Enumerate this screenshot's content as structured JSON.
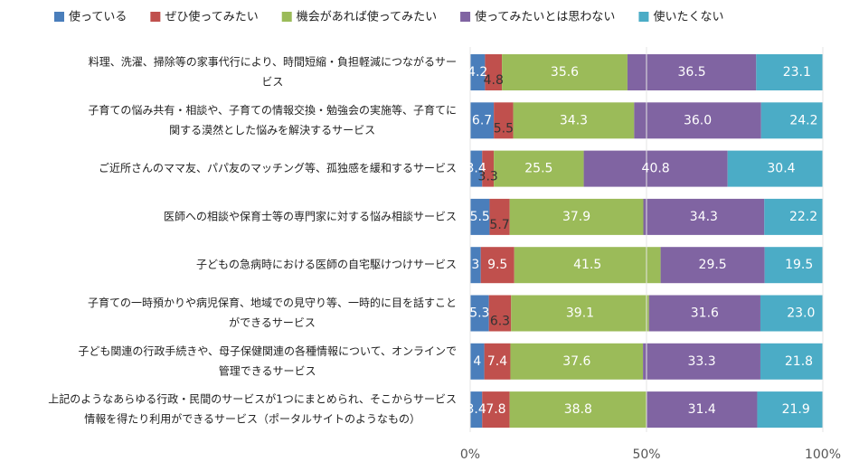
{
  "chart_data": {
    "type": "stacked_barh",
    "categories": [
      [
        "料理、洗濯、掃除等の家事代行により、時間短縮・負担軽減につながるサー",
        "ビス"
      ],
      [
        "子育ての悩み共有・相談や、子育ての情報交換・勉強会の実施等、子育てに",
        "関する漠然とした悩みを解決するサービス"
      ],
      [
        "ご近所さんのママ友、パパ友のマッチング等、孤独感を緩和するサービス"
      ],
      [
        "医師への相談や保育士等の専門家に対する悩み相談サービス"
      ],
      [
        "子どもの急病時における医師の自宅駆けつけサービス"
      ],
      [
        "子育ての一時預かりや病児保育、地域での見守り等、一時的に目を話すこと",
        "ができるサービス"
      ],
      [
        "子ども関連の行政手続きや、母子保健関連の各種情報について、オンラインで",
        "管理できるサービス"
      ],
      [
        "上記のようなあらゆる行政・民間のサービスが1つにまとめられ、そこからサービス",
        "情報を得たり利用ができるサービス（ポータルサイトのようなもの）"
      ]
    ],
    "series": [
      {
        "name": "使っている",
        "color": "#4a7ebb",
        "values": [
          4.2,
          6.7,
          3.4,
          5.5,
          3.0,
          5.3,
          4.0,
          3.4
        ]
      },
      {
        "name": "ぜひ使ってみたい",
        "color": "#c0504d",
        "values": [
          4.8,
          5.5,
          3.3,
          5.7,
          9.5,
          6.3,
          7.4,
          7.8
        ]
      },
      {
        "name": "機会があれば使ってみたい",
        "color": "#9bbb59",
        "values": [
          35.6,
          34.3,
          25.5,
          37.9,
          41.5,
          39.1,
          37.6,
          38.8
        ]
      },
      {
        "name": "使ってみたいとは思わない",
        "color": "#8064a2",
        "values": [
          36.5,
          36.0,
          40.8,
          34.3,
          29.5,
          31.6,
          33.3,
          31.4
        ],
        "value_labels": [
          "36.5",
          "36.0",
          "40.8",
          "34.3",
          "29.5",
          "31.6",
          "33.3",
          "31.4"
        ]
      },
      {
        "name": "使いたくない",
        "color": "#4bacc6",
        "values": [
          23.1,
          24.2,
          30.4,
          22.2,
          19.5,
          23.0,
          21.8,
          21.9
        ],
        "value_labels": [
          "23.1",
          "24.2",
          "30.4",
          "22.2",
          "19.5",
          "23.0",
          "21.8",
          "21.9"
        ]
      }
    ],
    "xlim": [
      0,
      100
    ],
    "xticks": [
      {
        "value": 0,
        "label": "0%"
      },
      {
        "value": 50,
        "label": "50%"
      },
      {
        "value": 100,
        "label": "100%"
      }
    ],
    "legend": "top"
  }
}
